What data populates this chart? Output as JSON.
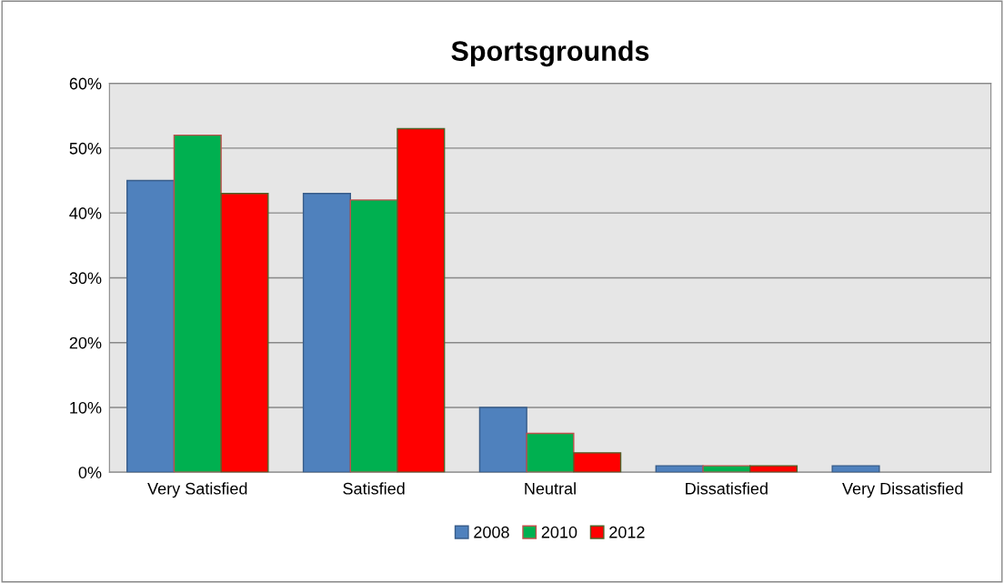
{
  "chart_data": {
    "type": "bar",
    "title": "Sportsgrounds",
    "categories": [
      "Very Satisfied",
      "Satisfied",
      "Neutral",
      "Dissatisfied",
      "Very Dissatisfied"
    ],
    "series": [
      {
        "name": "2008",
        "color": "#4f81bd",
        "values": [
          45,
          43,
          10,
          1,
          1
        ]
      },
      {
        "name": "2010",
        "color": "#00b050",
        "values": [
          52,
          42,
          6,
          1,
          null
        ]
      },
      {
        "name": "2012",
        "color": "#ff0000",
        "values": [
          43,
          53,
          3,
          1,
          null
        ]
      }
    ],
    "ylim": [
      0,
      60
    ],
    "yticks": [
      {
        "value": 0,
        "label": "0%"
      },
      {
        "value": 10,
        "label": "10%"
      },
      {
        "value": 20,
        "label": "20%"
      },
      {
        "value": 30,
        "label": "30%"
      },
      {
        "value": 40,
        "label": "40%"
      },
      {
        "value": 50,
        "label": "50%"
      },
      {
        "value": 60,
        "label": "60%"
      }
    ],
    "grid": "y",
    "legend": "bottom"
  }
}
